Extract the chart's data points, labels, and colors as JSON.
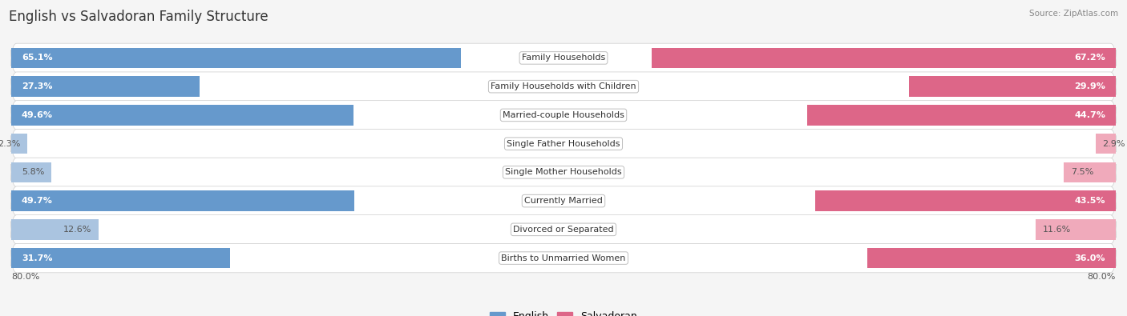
{
  "title": "English vs Salvadoran Family Structure",
  "source": "Source: ZipAtlas.com",
  "categories": [
    "Family Households",
    "Family Households with Children",
    "Married-couple Households",
    "Single Father Households",
    "Single Mother Households",
    "Currently Married",
    "Divorced or Separated",
    "Births to Unmarried Women"
  ],
  "english_values": [
    65.1,
    27.3,
    49.6,
    2.3,
    5.8,
    49.7,
    12.6,
    31.7
  ],
  "salvadoran_values": [
    67.2,
    29.9,
    44.7,
    2.9,
    7.5,
    43.5,
    11.6,
    36.0
  ],
  "english_color_dark": "#6699cc",
  "english_color_light": "#aac4e0",
  "salvadoran_color_dark": "#dd6688",
  "salvadoran_color_light": "#f0aabb",
  "row_bg_even": "#efefef",
  "row_bg_odd": "#e0e0e8",
  "bg_color": "#f5f5f5",
  "x_max": 80.0,
  "threshold": 20.0,
  "legend_english": "English",
  "legend_salvadoran": "Salvadoran",
  "title_fontsize": 12,
  "label_fontsize": 8,
  "value_fontsize": 8,
  "bar_height": 0.72,
  "axis_label": "80.0%"
}
